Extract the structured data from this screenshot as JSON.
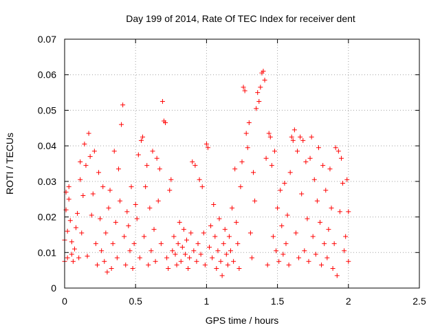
{
  "chart_data": {
    "type": "scatter",
    "title": "Day 199 of 2014, Rate Of TEC Index for receiver dent",
    "xlabel": "GPS time / hours",
    "ylabel": "ROTI / TECUs",
    "xlim": [
      0,
      2.5
    ],
    "ylim": [
      0,
      0.07
    ],
    "xticks": [
      0,
      0.5,
      1,
      1.5,
      2,
      2.5
    ],
    "xtick_labels": [
      "0",
      "0.5",
      "1",
      "1.5",
      "2",
      "2.5"
    ],
    "yticks": [
      0,
      0.01,
      0.02,
      0.03,
      0.04,
      0.05,
      0.06,
      0.07
    ],
    "ytick_labels": [
      "0",
      "0.01",
      "0.02",
      "0.03",
      "0.04",
      "0.05",
      "0.06",
      "0.07"
    ],
    "grid": true,
    "marker": "+",
    "color": "#ff0000",
    "series": [
      {
        "name": "ROTI",
        "points": [
          [
            0.0,
            0.0075
          ],
          [
            0.0,
            0.0135
          ],
          [
            0.01,
            0.022
          ],
          [
            0.01,
            0.027
          ],
          [
            0.02,
            0.0085
          ],
          [
            0.02,
            0.016
          ],
          [
            0.03,
            0.025
          ],
          [
            0.03,
            0.0285
          ],
          [
            0.04,
            0.019
          ],
          [
            0.05,
            0.0095
          ],
          [
            0.05,
            0.013
          ],
          [
            0.06,
            0.0075
          ],
          [
            0.07,
            0.011
          ],
          [
            0.08,
            0.017
          ],
          [
            0.09,
            0.021
          ],
          [
            0.1,
            0.0085
          ],
          [
            0.11,
            0.0305
          ],
          [
            0.11,
            0.0355
          ],
          [
            0.12,
            0.0155
          ],
          [
            0.13,
            0.026
          ],
          [
            0.14,
            0.0405
          ],
          [
            0.15,
            0.0345
          ],
          [
            0.16,
            0.009
          ],
          [
            0.17,
            0.0435
          ],
          [
            0.18,
            0.037
          ],
          [
            0.19,
            0.0205
          ],
          [
            0.2,
            0.0265
          ],
          [
            0.21,
            0.0385
          ],
          [
            0.22,
            0.0125
          ],
          [
            0.23,
            0.0065
          ],
          [
            0.24,
            0.0325
          ],
          [
            0.25,
            0.0195
          ],
          [
            0.26,
            0.0105
          ],
          [
            0.27,
            0.0285
          ],
          [
            0.28,
            0.0075
          ],
          [
            0.29,
            0.0155
          ],
          [
            0.3,
            0.0045
          ],
          [
            0.31,
            0.0225
          ],
          [
            0.32,
            0.0275
          ],
          [
            0.33,
            0.0055
          ],
          [
            0.34,
            0.0125
          ],
          [
            0.35,
            0.0385
          ],
          [
            0.36,
            0.0185
          ],
          [
            0.37,
            0.0085
          ],
          [
            0.38,
            0.0335
          ],
          [
            0.39,
            0.0245
          ],
          [
            0.4,
            0.046
          ],
          [
            0.41,
            0.0515
          ],
          [
            0.42,
            0.0145
          ],
          [
            0.43,
            0.0065
          ],
          [
            0.44,
            0.0215
          ],
          [
            0.45,
            0.0175
          ],
          [
            0.46,
            0.0105
          ],
          [
            0.47,
            0.0285
          ],
          [
            0.48,
            0.0055
          ],
          [
            0.49,
            0.0125
          ],
          [
            0.5,
            0.0235
          ],
          [
            0.51,
            0.0195
          ],
          [
            0.52,
            0.0375
          ],
          [
            0.53,
            0.0085
          ],
          [
            0.54,
            0.0415
          ],
          [
            0.55,
            0.0425
          ],
          [
            0.56,
            0.0145
          ],
          [
            0.57,
            0.0285
          ],
          [
            0.58,
            0.0345
          ],
          [
            0.59,
            0.0065
          ],
          [
            0.6,
            0.0225
          ],
          [
            0.61,
            0.0105
          ],
          [
            0.62,
            0.0385
          ],
          [
            0.63,
            0.0165
          ],
          [
            0.64,
            0.0075
          ],
          [
            0.65,
            0.0365
          ],
          [
            0.66,
            0.0245
          ],
          [
            0.67,
            0.0335
          ],
          [
            0.68,
            0.0125
          ],
          [
            0.69,
            0.0525
          ],
          [
            0.7,
            0.047
          ],
          [
            0.71,
            0.0465
          ],
          [
            0.72,
            0.0085
          ],
          [
            0.73,
            0.0055
          ],
          [
            0.74,
            0.0275
          ],
          [
            0.75,
            0.0305
          ],
          [
            0.76,
            0.0105
          ],
          [
            0.77,
            0.0145
          ],
          [
            0.78,
            0.0095
          ],
          [
            0.79,
            0.0065
          ],
          [
            0.8,
            0.0125
          ],
          [
            0.81,
            0.0185
          ],
          [
            0.82,
            0.0075
          ],
          [
            0.83,
            0.0115
          ],
          [
            0.84,
            0.0165
          ],
          [
            0.85,
            0.0095
          ],
          [
            0.86,
            0.0135
          ],
          [
            0.87,
            0.0055
          ],
          [
            0.88,
            0.0085
          ],
          [
            0.89,
            0.0155
          ],
          [
            0.9,
            0.0355
          ],
          [
            0.91,
            0.0105
          ],
          [
            0.92,
            0.0345
          ],
          [
            0.93,
            0.0075
          ],
          [
            0.94,
            0.0125
          ],
          [
            0.95,
            0.0305
          ],
          [
            0.96,
            0.0095
          ],
          [
            0.97,
            0.0285
          ],
          [
            0.98,
            0.0155
          ],
          [
            0.99,
            0.0065
          ],
          [
            1.0,
            0.0405
          ],
          [
            1.01,
            0.0395
          ],
          [
            1.02,
            0.0115
          ],
          [
            1.03,
            0.0175
          ],
          [
            1.04,
            0.0085
          ],
          [
            1.05,
            0.0235
          ],
          [
            1.06,
            0.0145
          ],
          [
            1.07,
            0.0055
          ],
          [
            1.08,
            0.0105
          ],
          [
            1.09,
            0.0195
          ],
          [
            1.1,
            0.0075
          ],
          [
            1.11,
            0.0035
          ],
          [
            1.12,
            0.0125
          ],
          [
            1.13,
            0.0165
          ],
          [
            1.14,
            0.0095
          ],
          [
            1.15,
            0.0065
          ],
          [
            1.16,
            0.0145
          ],
          [
            1.17,
            0.0105
          ],
          [
            1.18,
            0.0225
          ],
          [
            1.19,
            0.0075
          ],
          [
            1.2,
            0.0335
          ],
          [
            1.21,
            0.0185
          ],
          [
            1.22,
            0.0125
          ],
          [
            1.23,
            0.0055
          ],
          [
            1.24,
            0.0285
          ],
          [
            1.25,
            0.0355
          ],
          [
            1.26,
            0.0565
          ],
          [
            1.27,
            0.0555
          ],
          [
            1.28,
            0.0435
          ],
          [
            1.29,
            0.0395
          ],
          [
            1.3,
            0.0465
          ],
          [
            1.31,
            0.0155
          ],
          [
            1.32,
            0.0085
          ],
          [
            1.33,
            0.0325
          ],
          [
            1.34,
            0.0245
          ],
          [
            1.35,
            0.0505
          ],
          [
            1.36,
            0.055
          ],
          [
            1.37,
            0.0525
          ],
          [
            1.38,
            0.0565
          ],
          [
            1.39,
            0.0605
          ],
          [
            1.4,
            0.061
          ],
          [
            1.41,
            0.0585
          ],
          [
            1.42,
            0.0365
          ],
          [
            1.43,
            0.0065
          ],
          [
            1.44,
            0.0435
          ],
          [
            1.45,
            0.0425
          ],
          [
            1.46,
            0.0345
          ],
          [
            1.47,
            0.0145
          ],
          [
            1.48,
            0.0385
          ],
          [
            1.49,
            0.0105
          ],
          [
            1.5,
            0.0225
          ],
          [
            1.51,
            0.0075
          ],
          [
            1.52,
            0.0275
          ],
          [
            1.53,
            0.0175
          ],
          [
            1.54,
            0.0095
          ],
          [
            1.55,
            0.0295
          ],
          [
            1.56,
            0.0125
          ],
          [
            1.57,
            0.0205
          ],
          [
            1.58,
            0.0065
          ],
          [
            1.59,
            0.0325
          ],
          [
            1.6,
            0.0425
          ],
          [
            1.61,
            0.0415
          ],
          [
            1.62,
            0.0445
          ],
          [
            1.63,
            0.0155
          ],
          [
            1.64,
            0.0385
          ],
          [
            1.65,
            0.0085
          ],
          [
            1.66,
            0.0425
          ],
          [
            1.67,
            0.0265
          ],
          [
            1.68,
            0.0415
          ],
          [
            1.69,
            0.0105
          ],
          [
            1.7,
            0.0355
          ],
          [
            1.71,
            0.0195
          ],
          [
            1.72,
            0.0075
          ],
          [
            1.73,
            0.0365
          ],
          [
            1.74,
            0.0425
          ],
          [
            1.75,
            0.0145
          ],
          [
            1.76,
            0.0305
          ],
          [
            1.77,
            0.0095
          ],
          [
            1.78,
            0.0245
          ],
          [
            1.79,
            0.0395
          ],
          [
            1.8,
            0.0185
          ],
          [
            1.81,
            0.0065
          ],
          [
            1.82,
            0.0345
          ],
          [
            1.83,
            0.0125
          ],
          [
            1.84,
            0.0275
          ],
          [
            1.85,
            0.0085
          ],
          [
            1.86,
            0.0165
          ],
          [
            1.87,
            0.0335
          ],
          [
            1.88,
            0.0225
          ],
          [
            1.89,
            0.0055
          ],
          [
            1.9,
            0.0125
          ],
          [
            1.91,
            0.0395
          ],
          [
            1.92,
            0.0035
          ],
          [
            1.93,
            0.0385
          ],
          [
            1.94,
            0.0215
          ],
          [
            1.95,
            0.0365
          ],
          [
            1.96,
            0.0295
          ],
          [
            1.97,
            0.0105
          ],
          [
            1.98,
            0.0145
          ],
          [
            1.99,
            0.0305
          ],
          [
            2.0,
            0.0075
          ],
          [
            2.0,
            0.0215
          ]
        ]
      }
    ]
  }
}
